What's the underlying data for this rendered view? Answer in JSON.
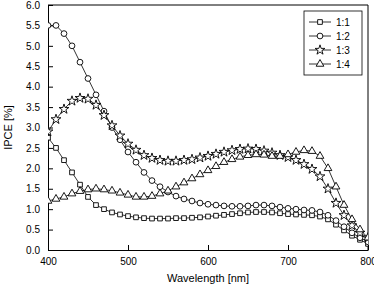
{
  "chart_data": {
    "type": "line",
    "x_label": "Wavelength [nm]",
    "y_label": "IPCE [%]",
    "x": [
      400,
      410,
      420,
      430,
      440,
      450,
      460,
      470,
      480,
      490,
      500,
      510,
      520,
      530,
      540,
      550,
      560,
      570,
      580,
      590,
      600,
      610,
      620,
      630,
      640,
      650,
      660,
      670,
      680,
      690,
      700,
      710,
      720,
      730,
      740,
      750,
      760,
      770,
      780,
      790,
      800
    ],
    "series": [
      {
        "name": "1:1",
        "color": "#000000",
        "marker": "square",
        "line_style": "solid",
        "values": [
          2.75,
          2.5,
          2.2,
          1.9,
          1.6,
          1.3,
          1.1,
          1.0,
          0.92,
          0.87,
          0.83,
          0.8,
          0.78,
          0.77,
          0.77,
          0.77,
          0.78,
          0.78,
          0.79,
          0.8,
          0.82,
          0.84,
          0.86,
          0.88,
          0.9,
          0.92,
          0.93,
          0.93,
          0.92,
          0.9,
          0.88,
          0.87,
          0.86,
          0.85,
          0.82,
          0.75,
          0.62,
          0.48,
          0.35,
          0.25,
          0.15
        ]
      },
      {
        "name": "1:2",
        "color": "#000000",
        "marker": "circle",
        "line_style": "solid",
        "values": [
          5.5,
          5.5,
          5.3,
          5.0,
          4.6,
          4.2,
          3.8,
          3.4,
          3.0,
          2.7,
          2.4,
          2.15,
          1.9,
          1.7,
          1.55,
          1.42,
          1.32,
          1.25,
          1.2,
          1.15,
          1.12,
          1.1,
          1.08,
          1.07,
          1.07,
          1.08,
          1.1,
          1.1,
          1.08,
          1.05,
          1.02,
          1.0,
          0.98,
          0.97,
          0.93,
          0.85,
          0.72,
          0.57,
          0.42,
          0.3,
          0.2
        ]
      },
      {
        "name": "1:3",
        "color": "#000000",
        "marker": "star",
        "line_style": "solid",
        "values": [
          2.9,
          3.2,
          3.45,
          3.65,
          3.72,
          3.7,
          3.55,
          3.3,
          3.05,
          2.8,
          2.6,
          2.45,
          2.32,
          2.25,
          2.2,
          2.18,
          2.18,
          2.2,
          2.22,
          2.26,
          2.3,
          2.35,
          2.4,
          2.44,
          2.47,
          2.48,
          2.47,
          2.43,
          2.38,
          2.32,
          2.27,
          2.2,
          2.1,
          1.98,
          1.8,
          1.5,
          1.15,
          0.85,
          0.6,
          0.42,
          0.3
        ]
      },
      {
        "name": "1:4",
        "color": "#000000",
        "marker": "triangle",
        "line_style": "solid",
        "values": [
          1.2,
          1.25,
          1.3,
          1.38,
          1.44,
          1.48,
          1.5,
          1.48,
          1.45,
          1.4,
          1.35,
          1.3,
          1.3,
          1.32,
          1.38,
          1.45,
          1.55,
          1.65,
          1.75,
          1.85,
          1.95,
          2.05,
          2.15,
          2.22,
          2.28,
          2.32,
          2.34,
          2.33,
          2.3,
          2.3,
          2.34,
          2.4,
          2.44,
          2.42,
          2.3,
          2.0,
          1.55,
          1.1,
          0.75,
          0.5,
          0.3
        ]
      }
    ],
    "xlim": [
      400,
      800
    ],
    "xticks": [
      400,
      500,
      600,
      700,
      800
    ],
    "ylim": [
      0,
      6
    ],
    "yticks": [
      {
        "value": 0,
        "label": "0.0"
      },
      0.5,
      {
        "value": 1,
        "label": "1.0"
      },
      1.5,
      {
        "value": 2,
        "label": "2.0"
      },
      2.5,
      {
        "value": 3,
        "label": "3.0"
      },
      3.5,
      {
        "value": 4,
        "label": "4.0"
      },
      4.5,
      {
        "value": 5,
        "label": "5.0"
      },
      5.5,
      {
        "value": 6,
        "label": "6.0"
      }
    ],
    "grid": false,
    "legend": "upper right"
  }
}
